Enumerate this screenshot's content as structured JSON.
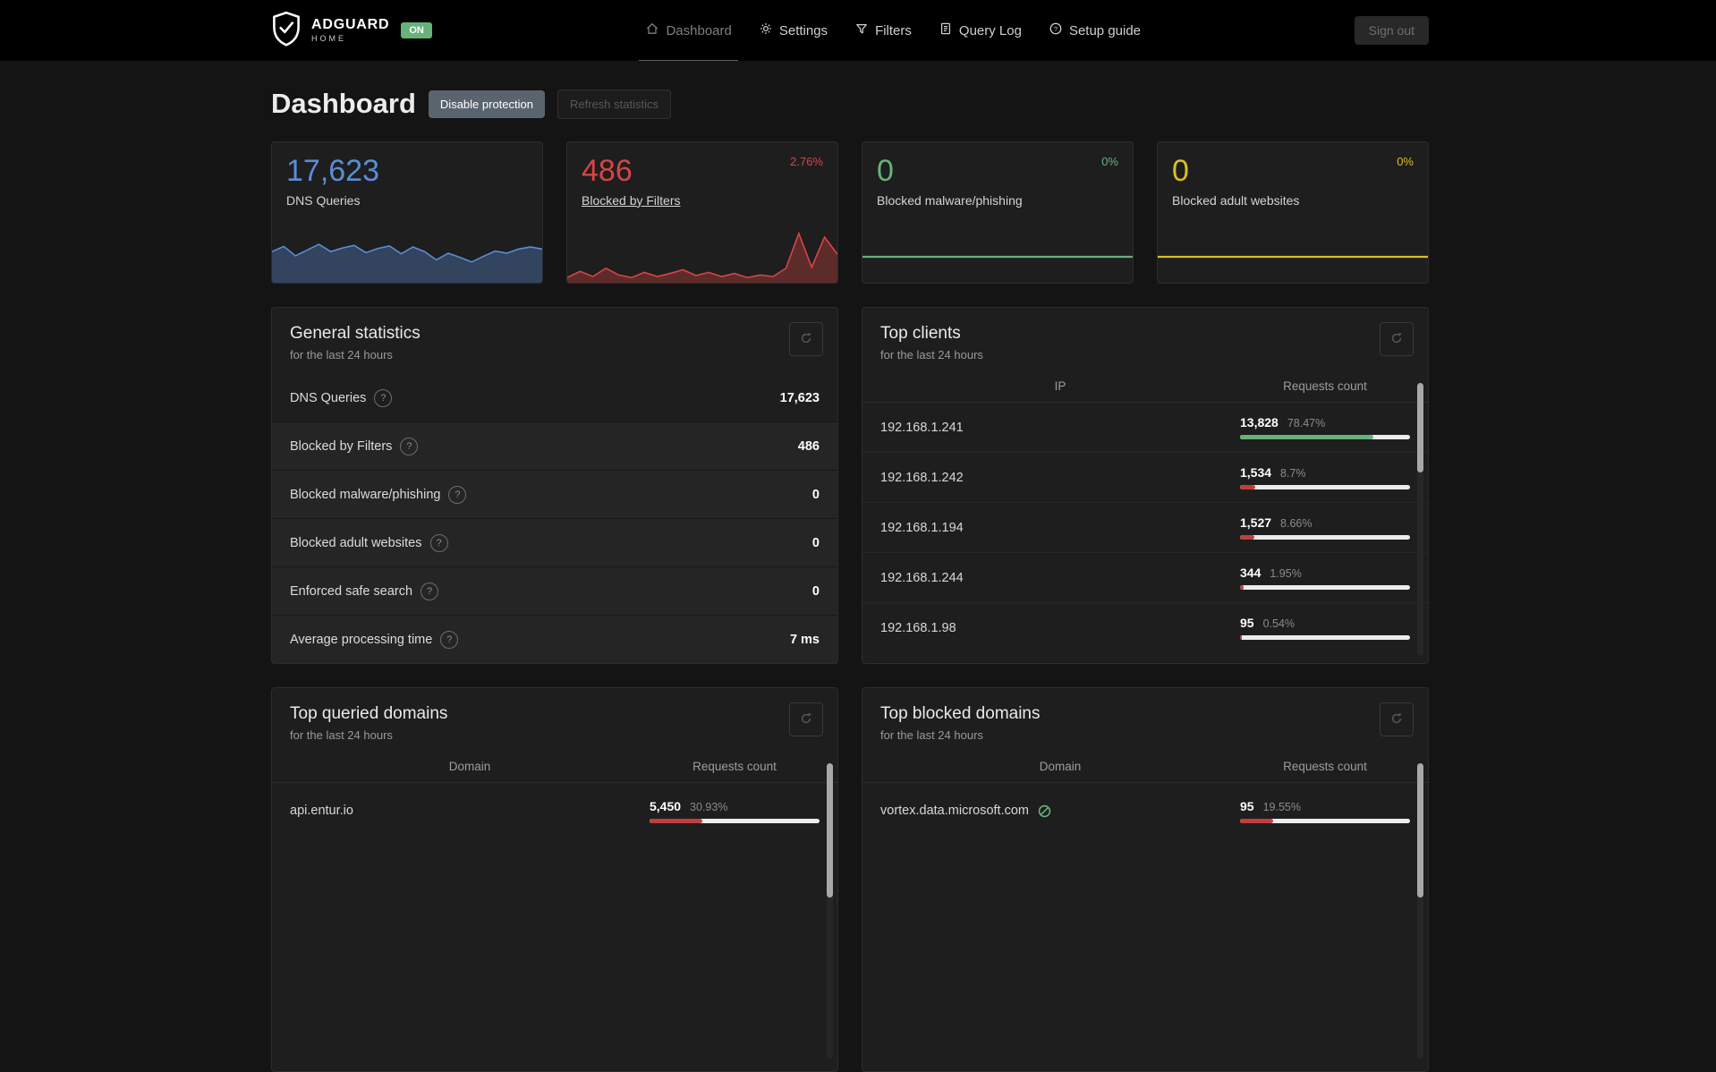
{
  "colors": {
    "green": "#67b279",
    "red": "#c43d3d"
  },
  "navbar": {
    "brand": {
      "name": "ADGUARD",
      "sub": "HOME",
      "status": "ON"
    },
    "items": [
      {
        "label": "Dashboard"
      },
      {
        "label": "Settings"
      },
      {
        "label": "Filters"
      },
      {
        "label": "Query Log"
      },
      {
        "label": "Setup guide"
      }
    ],
    "sign_out": "Sign out"
  },
  "page": {
    "title": "Dashboard",
    "disable_protection": "Disable protection",
    "refresh_statistics": "Refresh statistics"
  },
  "stat_cards": [
    {
      "value": "17,623",
      "label": "DNS Queries",
      "percent": "",
      "color": "#5a8dd6",
      "spark_fill": true,
      "spark": [
        0.6,
        0.7,
        0.52,
        0.63,
        0.74,
        0.6,
        0.67,
        0.72,
        0.58,
        0.66,
        0.71,
        0.56,
        0.69,
        0.6,
        0.44,
        0.57,
        0.49,
        0.4,
        0.51,
        0.61,
        0.57,
        0.65,
        0.69,
        0.65
      ]
    },
    {
      "value": "486",
      "label": "Blocked by Filters",
      "percent": "2.76%",
      "color": "#d64545",
      "spark_fill": true,
      "spark": [
        0.1,
        0.22,
        0.12,
        0.28,
        0.15,
        0.1,
        0.2,
        0.12,
        0.18,
        0.25,
        0.14,
        0.2,
        0.12,
        0.18,
        0.1,
        0.15,
        0.12,
        0.28,
        0.95,
        0.3,
        0.88,
        0.55
      ]
    },
    {
      "value": "0",
      "label": "Blocked malware/phishing",
      "percent": "0%",
      "color": "#67b279",
      "spark_fill": false,
      "spark": [
        0.5,
        0.5
      ]
    },
    {
      "value": "0",
      "label": "Blocked adult websites",
      "percent": "0%",
      "color": "#d9c023",
      "spark_fill": false,
      "spark": [
        0.5,
        0.5
      ]
    }
  ],
  "general_stats": {
    "title": "General statistics",
    "subtitle": "for the last 24 hours",
    "rows": [
      {
        "label": "DNS Queries",
        "value": "17,623"
      },
      {
        "label": "Blocked by Filters",
        "value": "486"
      },
      {
        "label": "Blocked malware/phishing",
        "value": "0"
      },
      {
        "label": "Blocked adult websites",
        "value": "0"
      },
      {
        "label": "Enforced safe search",
        "value": "0"
      },
      {
        "label": "Average processing time",
        "value": "7 ms"
      }
    ]
  },
  "top_clients": {
    "title": "Top clients",
    "subtitle": "for the last 24 hours",
    "columns": [
      "IP",
      "Requests count"
    ],
    "rows": [
      {
        "ip": "192.168.1.241",
        "count": "13,828",
        "percent": "78.47%",
        "pct": 78.47,
        "bar_color": "green"
      },
      {
        "ip": "192.168.1.242",
        "count": "1,534",
        "percent": "8.7%",
        "pct": 8.7,
        "bar_color": "red"
      },
      {
        "ip": "192.168.1.194",
        "count": "1,527",
        "percent": "8.66%",
        "pct": 8.66,
        "bar_color": "red"
      },
      {
        "ip": "192.168.1.244",
        "count": "344",
        "percent": "1.95%",
        "pct": 1.95,
        "bar_color": "red"
      },
      {
        "ip": "192.168.1.98",
        "count": "95",
        "percent": "0.54%",
        "pct": 0.54,
        "bar_color": "red"
      }
    ]
  },
  "top_queried": {
    "title": "Top queried domains",
    "subtitle": "for the last 24 hours",
    "columns": [
      "Domain",
      "Requests count"
    ],
    "rows": [
      {
        "domain": "api.entur.io",
        "count": "5,450",
        "percent": "30.93%",
        "pct": 30.93,
        "bar_color": "red"
      }
    ]
  },
  "top_blocked": {
    "title": "Top blocked domains",
    "subtitle": "for the last 24 hours",
    "columns": [
      "Domain",
      "Requests count"
    ],
    "rows": [
      {
        "domain": "vortex.data.microsoft.com",
        "count": "95",
        "percent": "19.55%",
        "pct": 19.55,
        "bar_color": "red"
      }
    ]
  }
}
